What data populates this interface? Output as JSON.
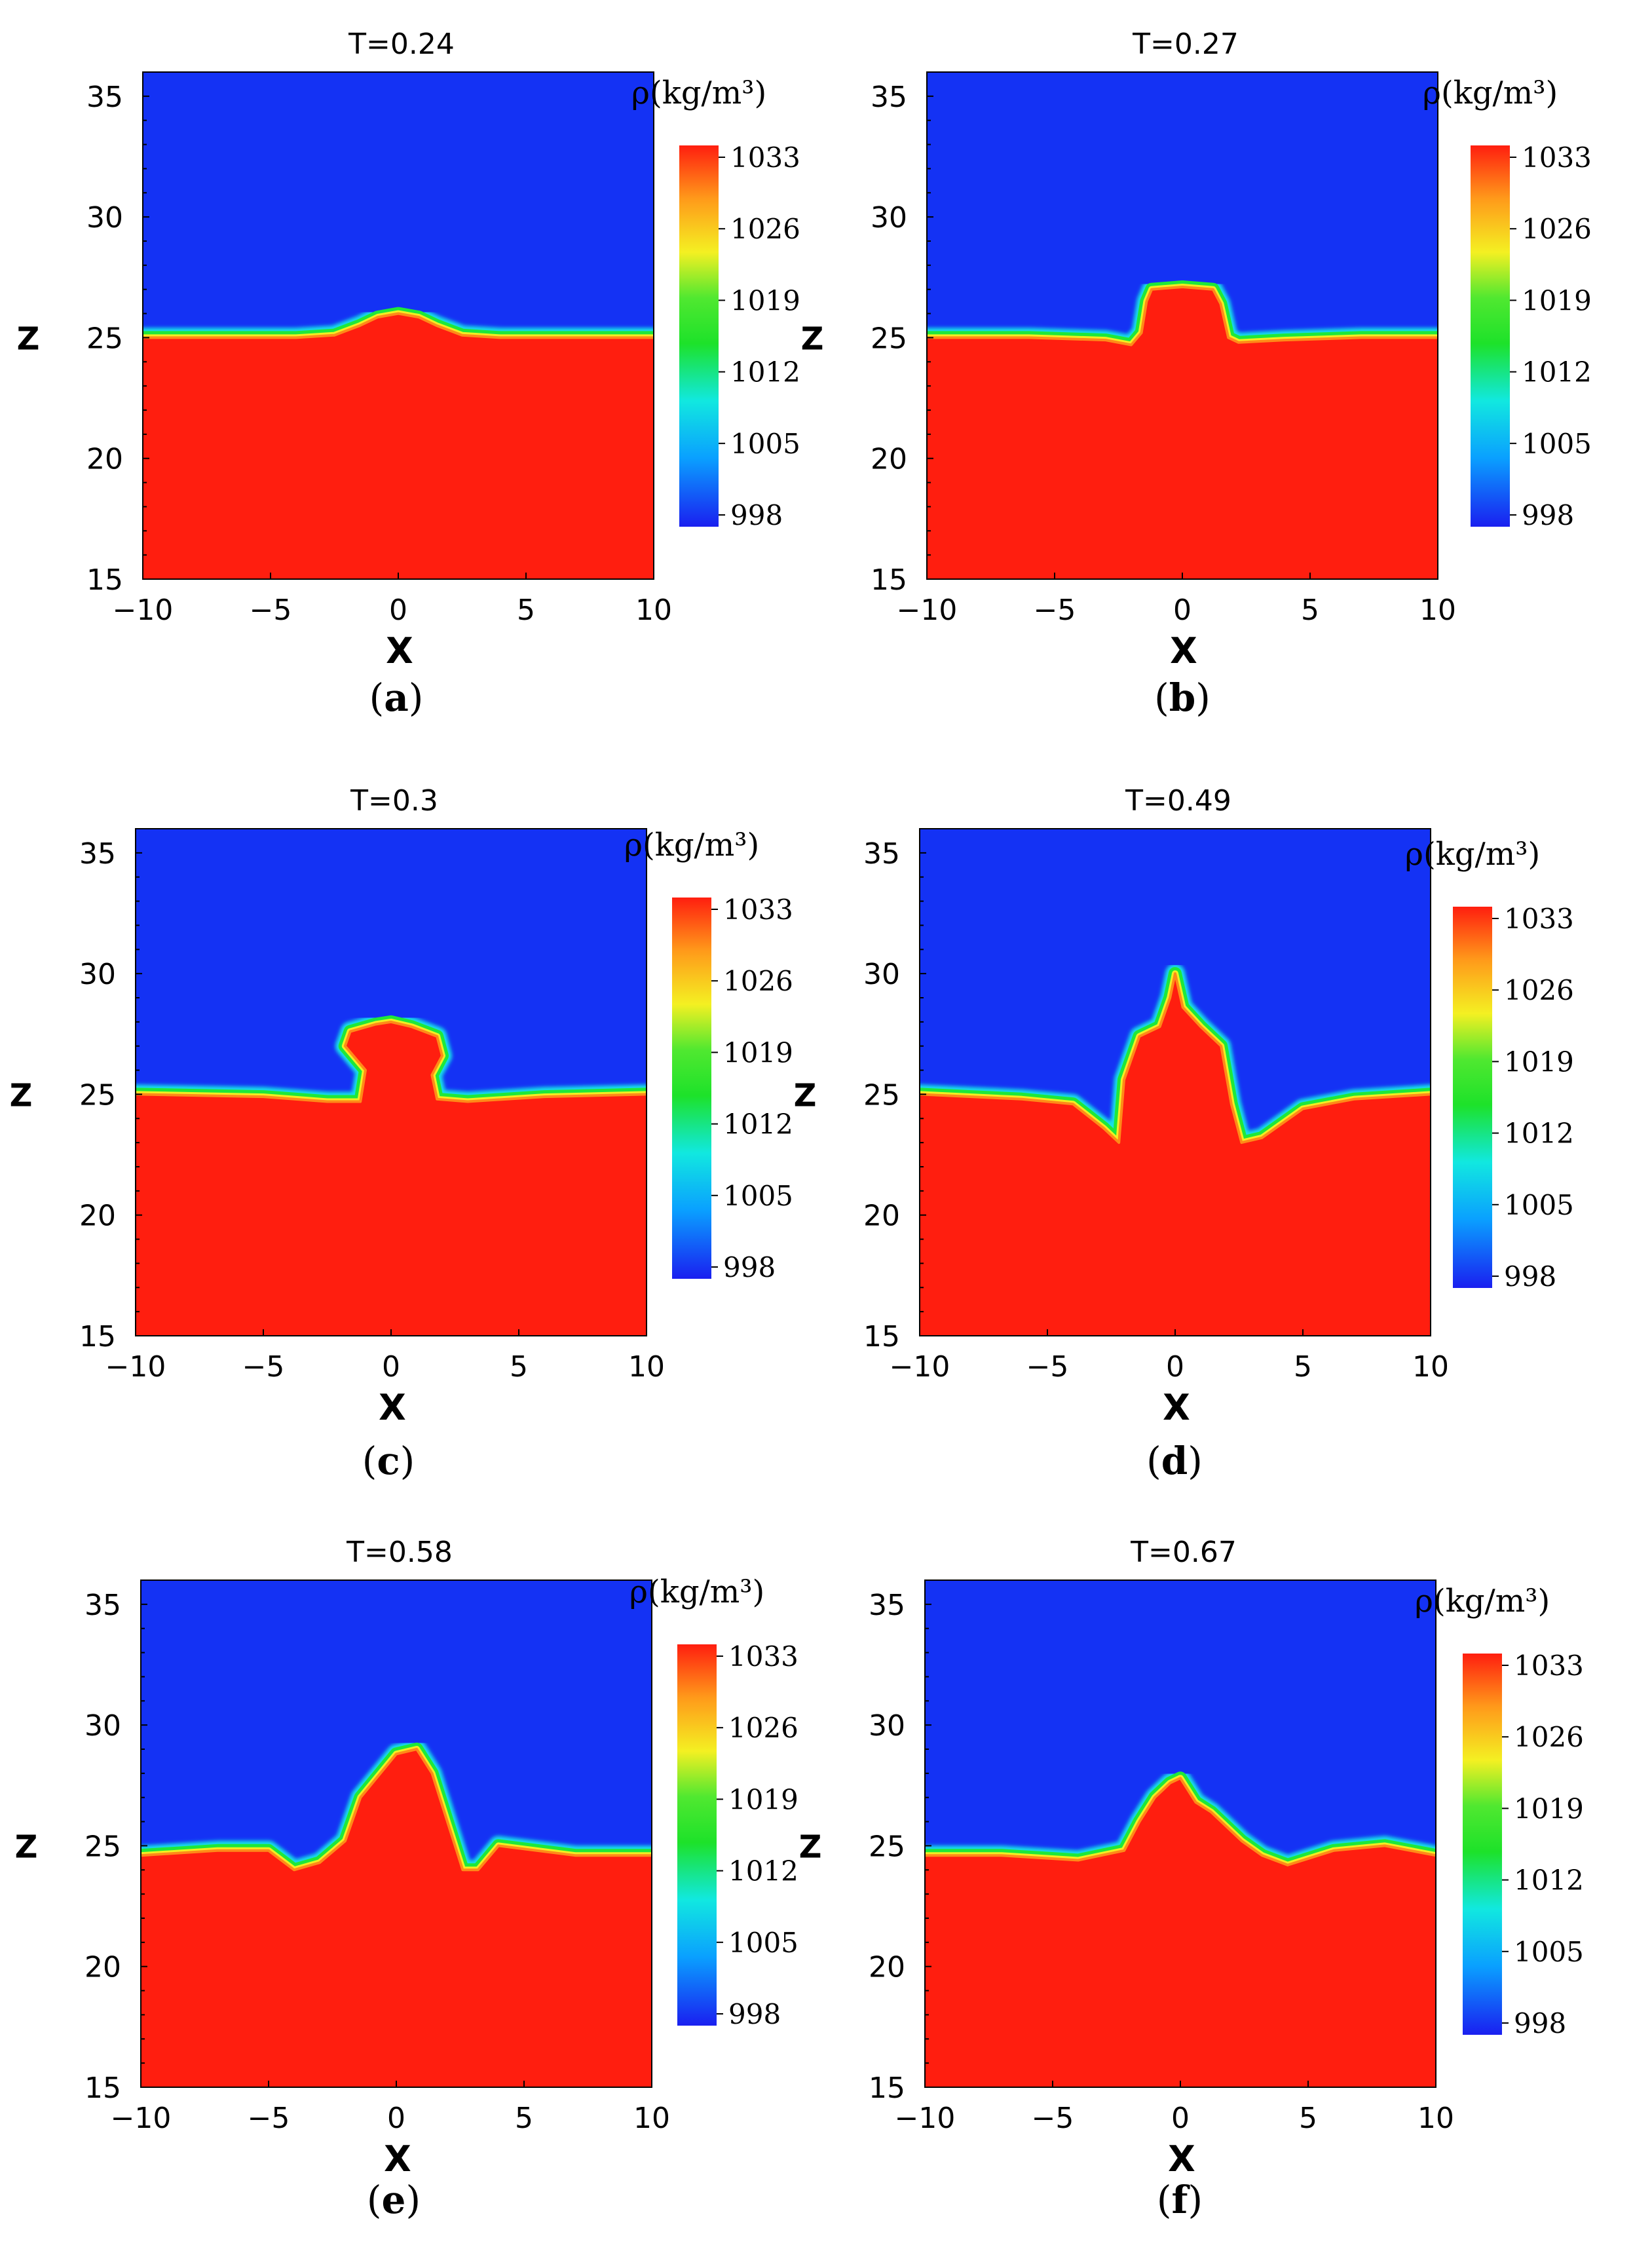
{
  "colors": {
    "background": "#ffffff",
    "upper_fluid": "#1432f4",
    "lower_fluid": "#ff1e0f",
    "axis": "#000000"
  },
  "chart_data": [
    {
      "panel": "a",
      "type": "heatmap",
      "title": "T=0.24",
      "time": 0.24,
      "xlabel": "X",
      "ylabel": "Z",
      "xlim": [
        -10,
        10
      ],
      "ylim": [
        15,
        36
      ],
      "xticks": [
        "−10",
        "−5",
        "0",
        "5",
        "10"
      ],
      "yticks": [
        "15",
        "20",
        "25",
        "30",
        "35"
      ],
      "colorbar": {
        "label": "ρ(kg/m³)",
        "ticks": [
          "1033",
          "1026",
          "1019",
          "1012",
          "1005",
          "998"
        ],
        "min": 998,
        "max": 1033
      },
      "interface_x": [
        -10,
        -8,
        -6,
        -4,
        -2.5,
        -1.5,
        -0.8,
        0,
        0.8,
        1.5,
        2.5,
        4,
        6,
        8,
        10
      ],
      "interface_z": [
        25,
        25,
        25,
        25,
        25.1,
        25.5,
        25.85,
        26.0,
        25.85,
        25.5,
        25.1,
        25,
        25,
        25,
        25
      ],
      "caption": "a"
    },
    {
      "panel": "b",
      "type": "heatmap",
      "title": "T=0.27",
      "time": 0.27,
      "xlabel": "X",
      "ylabel": "Z",
      "xlim": [
        -10,
        10
      ],
      "ylim": [
        15,
        36
      ],
      "xticks": [
        "−10",
        "−5",
        "0",
        "5",
        "10"
      ],
      "yticks": [
        "15",
        "20",
        "25",
        "30",
        "35"
      ],
      "colorbar": {
        "label": "ρ(kg/m³)",
        "ticks": [
          "1033",
          "1026",
          "1019",
          "1012",
          "1005",
          "998"
        ],
        "min": 998,
        "max": 1033
      },
      "interface_x": [
        -10,
        -6,
        -3,
        -2,
        -1.6,
        -1.4,
        -1.2,
        0,
        1.2,
        1.5,
        1.8,
        2.2,
        4,
        7,
        10
      ],
      "interface_z": [
        25,
        25,
        24.9,
        24.7,
        25.2,
        26.5,
        27.0,
        27.1,
        27.0,
        26.4,
        25.0,
        24.8,
        24.9,
        25,
        25
      ],
      "caption": "b"
    },
    {
      "panel": "c",
      "type": "heatmap",
      "title": "T=0.3",
      "time": 0.3,
      "xlabel": "X",
      "ylabel": "Z",
      "xlim": [
        -10,
        10
      ],
      "ylim": [
        15,
        36
      ],
      "xticks": [
        "−10",
        "−5",
        "0",
        "5",
        "10"
      ],
      "yticks": [
        "15",
        "20",
        "25",
        "30",
        "35"
      ],
      "colorbar": {
        "label": "ρ(kg/m³)",
        "ticks": [
          "1033",
          "1026",
          "1019",
          "1012",
          "1005",
          "998"
        ],
        "min": 998,
        "max": 1033
      },
      "interface_x": [
        -10,
        -5,
        -2.5,
        -1.2,
        -1.0,
        -1.8,
        -1.6,
        -0.6,
        0,
        0.8,
        1.8,
        2.0,
        1.6,
        1.8,
        3,
        6,
        10
      ],
      "interface_z": [
        25,
        24.9,
        24.7,
        24.7,
        26.0,
        27.0,
        27.6,
        27.9,
        28.0,
        27.8,
        27.4,
        26.6,
        25.8,
        24.8,
        24.7,
        24.9,
        25
      ],
      "caption": "c"
    },
    {
      "panel": "d",
      "type": "heatmap",
      "title": "T=0.49",
      "time": 0.49,
      "xlabel": "X",
      "ylabel": "Z",
      "xlim": [
        -10,
        10
      ],
      "ylim": [
        15,
        36
      ],
      "xticks": [
        "−10",
        "−5",
        "0",
        "5",
        "10"
      ],
      "yticks": [
        "15",
        "20",
        "25",
        "30",
        "35"
      ],
      "colorbar": {
        "label": "ρ(kg/m³)",
        "ticks": [
          "1033",
          "1026",
          "1019",
          "1012",
          "1005",
          "998"
        ],
        "min": 998,
        "max": 1033
      },
      "interface_x": [
        -10,
        -6,
        -4,
        -2.8,
        -2.2,
        -2.0,
        -1.4,
        -0.6,
        -0.2,
        0,
        0.3,
        1.0,
        1.8,
        2.2,
        2.6,
        3.4,
        5,
        7,
        10
      ],
      "interface_z": [
        25,
        24.8,
        24.6,
        23.6,
        23.0,
        25.6,
        27.4,
        27.8,
        29.0,
        30.0,
        28.6,
        27.8,
        27.0,
        24.6,
        23.0,
        23.2,
        24.4,
        24.8,
        25
      ],
      "caption": "d"
    },
    {
      "panel": "e",
      "type": "heatmap",
      "title": "T=0.58",
      "time": 0.58,
      "xlabel": "X",
      "ylabel": "Z",
      "xlim": [
        -10,
        10
      ],
      "ylim": [
        15,
        36
      ],
      "xticks": [
        "−10",
        "−5",
        "0",
        "5",
        "10"
      ],
      "yticks": [
        "15",
        "20",
        "25",
        "30",
        "35"
      ],
      "colorbar": {
        "label": "ρ(kg/m³)",
        "ticks": [
          "1033",
          "1026",
          "1019",
          "1012",
          "1005",
          "998"
        ],
        "min": 998,
        "max": 1033
      },
      "interface_x": [
        -10,
        -7,
        -5,
        -4,
        -3,
        -2,
        -1.4,
        0,
        0.8,
        1.4,
        2.0,
        2.6,
        3.2,
        4,
        5.5,
        7,
        10
      ],
      "interface_z": [
        24.6,
        24.8,
        24.8,
        24.0,
        24.3,
        25.2,
        27.0,
        28.8,
        29.0,
        28.0,
        26.0,
        24.0,
        24.0,
        25.0,
        24.8,
        24.6,
        24.6
      ],
      "caption": "e"
    },
    {
      "panel": "f",
      "type": "heatmap",
      "title": "T=0.67",
      "time": 0.67,
      "xlabel": "X",
      "ylabel": "Z",
      "xlim": [
        -10,
        10
      ],
      "ylim": [
        15,
        36
      ],
      "xticks": [
        "−10",
        "−5",
        "0",
        "5",
        "10"
      ],
      "yticks": [
        "15",
        "20",
        "25",
        "30",
        "35"
      ],
      "colorbar": {
        "label": "ρ(kg/m³)",
        "ticks": [
          "1033",
          "1026",
          "1019",
          "1012",
          "1005",
          "998"
        ],
        "min": 998,
        "max": 1033
      },
      "interface_x": [
        -10,
        -7,
        -4,
        -2.2,
        -1.6,
        -1.0,
        -0.4,
        0,
        0.6,
        1.2,
        1.8,
        2.4,
        3.2,
        4.2,
        6,
        8,
        10
      ],
      "interface_z": [
        24.6,
        24.6,
        24.4,
        24.8,
        26.0,
        27.0,
        27.6,
        27.8,
        26.8,
        26.4,
        25.8,
        25.2,
        24.6,
        24.2,
        24.8,
        25.0,
        24.6
      ],
      "caption": "f"
    }
  ]
}
